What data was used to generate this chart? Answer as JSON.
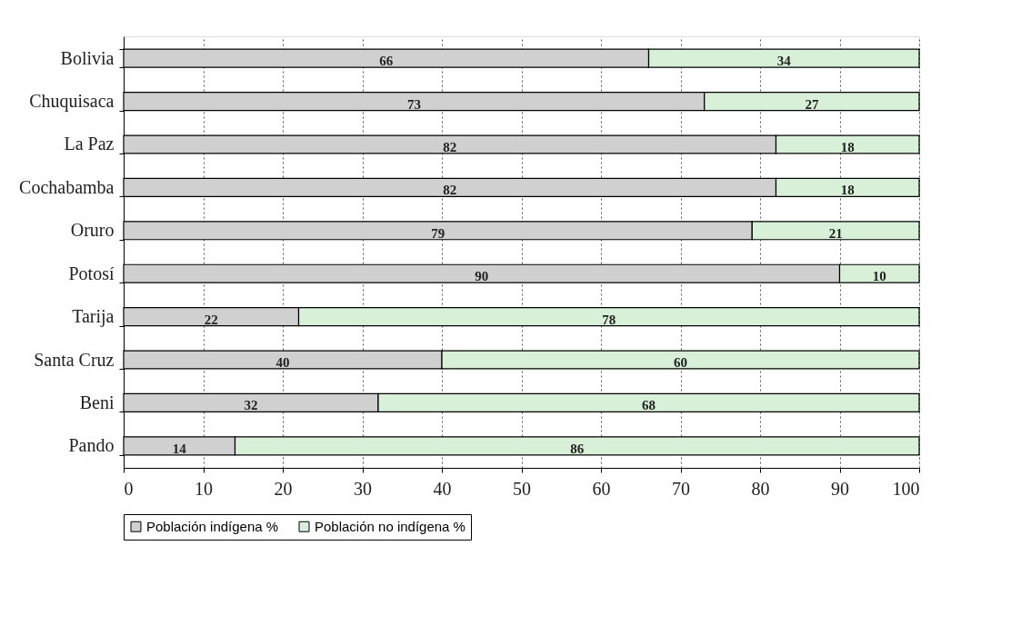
{
  "chart_data": {
    "type": "bar",
    "orientation": "horizontal",
    "stacked": true,
    "categories": [
      "Bolivia",
      "Chuquisaca",
      "La Paz",
      "Cochabamba",
      "Oruro",
      "Potosí",
      "Tarija",
      "Santa Cruz",
      "Beni",
      "Pando"
    ],
    "series": [
      {
        "name": "Población indígena %",
        "color": "#d0d0d0",
        "values": [
          66,
          73,
          82,
          82,
          79,
          90,
          22,
          40,
          32,
          14
        ]
      },
      {
        "name": "Población no indígena %",
        "color": "#d8efd8",
        "values": [
          34,
          27,
          18,
          18,
          21,
          10,
          78,
          60,
          68,
          86
        ]
      }
    ],
    "xlim": [
      0,
      100
    ],
    "xticks": [
      0,
      10,
      20,
      30,
      40,
      50,
      60,
      70,
      80,
      90,
      100
    ],
    "grid": "x",
    "legend": "bottom",
    "data_labels": true
  }
}
